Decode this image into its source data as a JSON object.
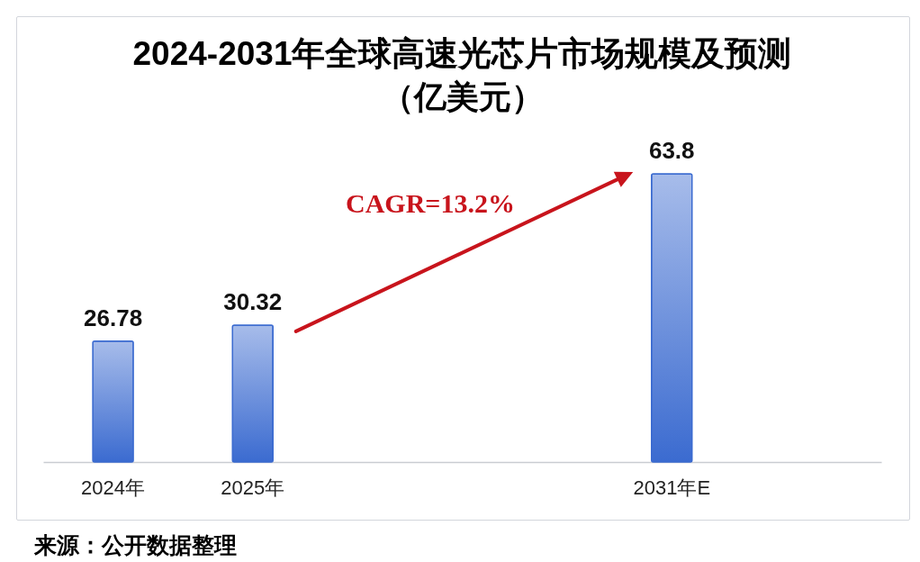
{
  "chart_data": {
    "type": "bar",
    "title": "2024-2031年全球高速光芯片市场规模及预测",
    "subtitle": "（亿美元）",
    "categories": [
      "2024年",
      "2025年",
      null,
      null,
      "2031年E",
      null
    ],
    "values": [
      26.78,
      30.32,
      null,
      null,
      63.8,
      null
    ],
    "color": "#3b6bd0",
    "data_labels": true,
    "annotations": [
      "CAGR=13.2%",
      "来源：公开数据整理"
    ]
  }
}
